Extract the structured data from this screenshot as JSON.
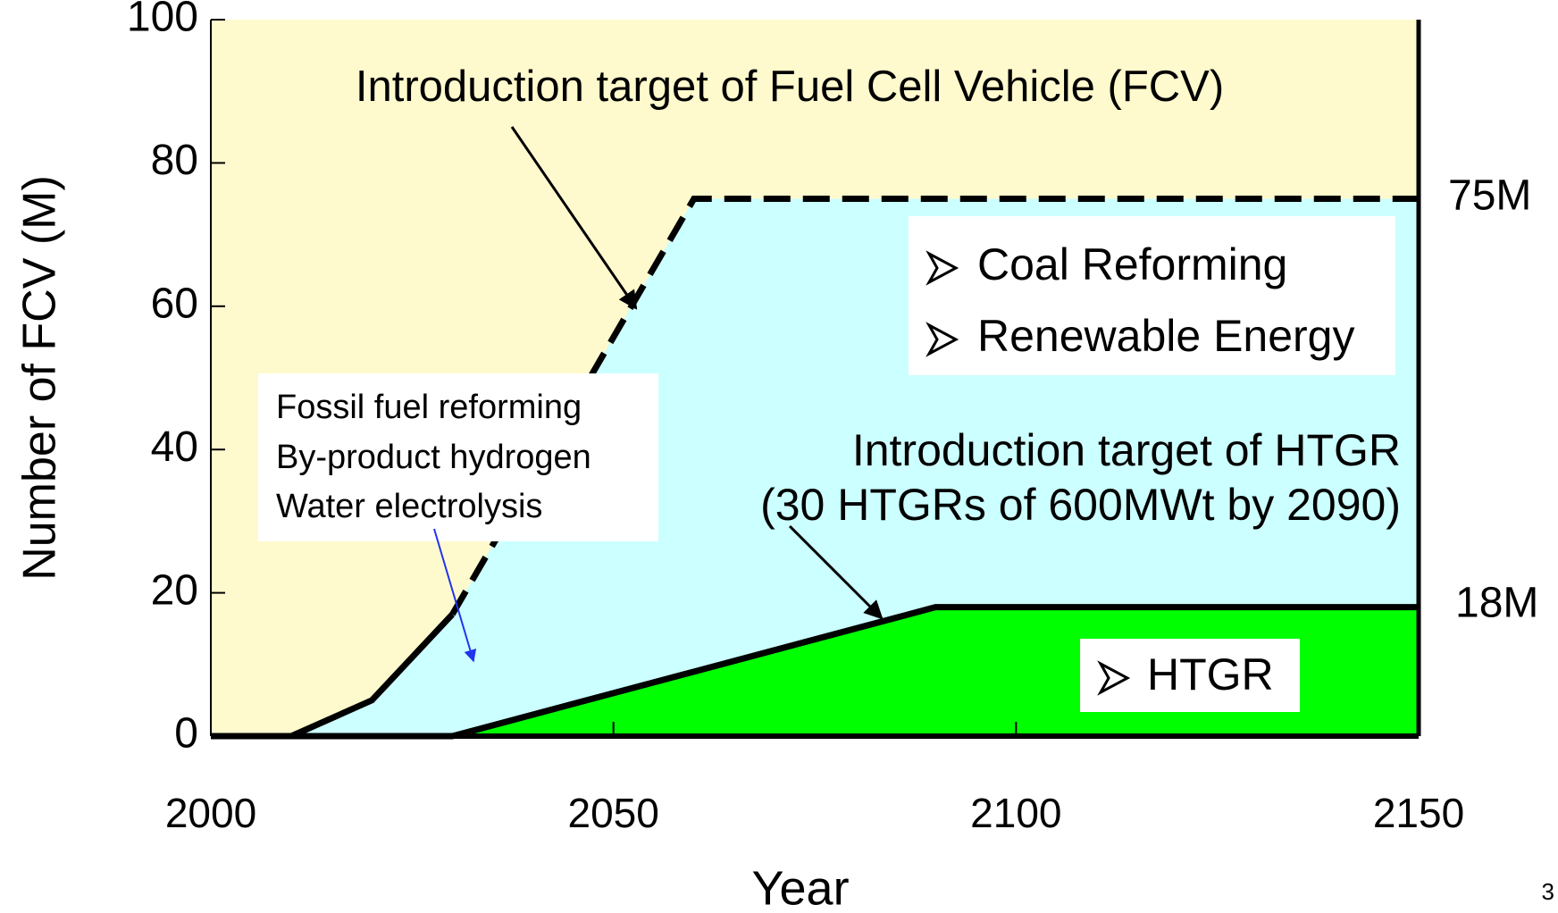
{
  "chart_data": {
    "type": "area",
    "x": [
      2000,
      2010,
      2020,
      2030,
      2060,
      2090,
      2150
    ],
    "series": [
      {
        "color": "#ccffff",
        "values": [
          0,
          0,
          5,
          17,
          75,
          75,
          75
        ]
      },
      {
        "name": "HTGR",
        "color": "#00ff00",
        "values": [
          0,
          0,
          0,
          0,
          9,
          18,
          18
        ]
      }
    ],
    "background_color": "#fffacd",
    "xlim": [
      2000,
      2150
    ],
    "xticks": [
      2000,
      2050,
      2100,
      2150
    ],
    "ylim": [
      0,
      100
    ],
    "yticks": [
      0,
      20,
      40,
      60,
      80,
      100
    ],
    "xlabel": "Year",
    "ylabel": "Number of FCV (M)",
    "annotations": {
      "fcv_target": "Introduction target of Fuel Cell Vehicle (FCV)",
      "htgr_target": [
        "Introduction target of HTGR",
        "(30 HTGRs of 600MWt by 2090)"
      ],
      "current_sources": [
        "Fossil fuel reforming",
        "By-product hydrogen",
        "Water electrolysis"
      ],
      "future_sources": [
        "Coal Reforming",
        "Renewable Energy"
      ],
      "htgr_box": "HTGR",
      "total_label": "75M",
      "htgr_label": "18M"
    },
    "page_number": "3"
  }
}
